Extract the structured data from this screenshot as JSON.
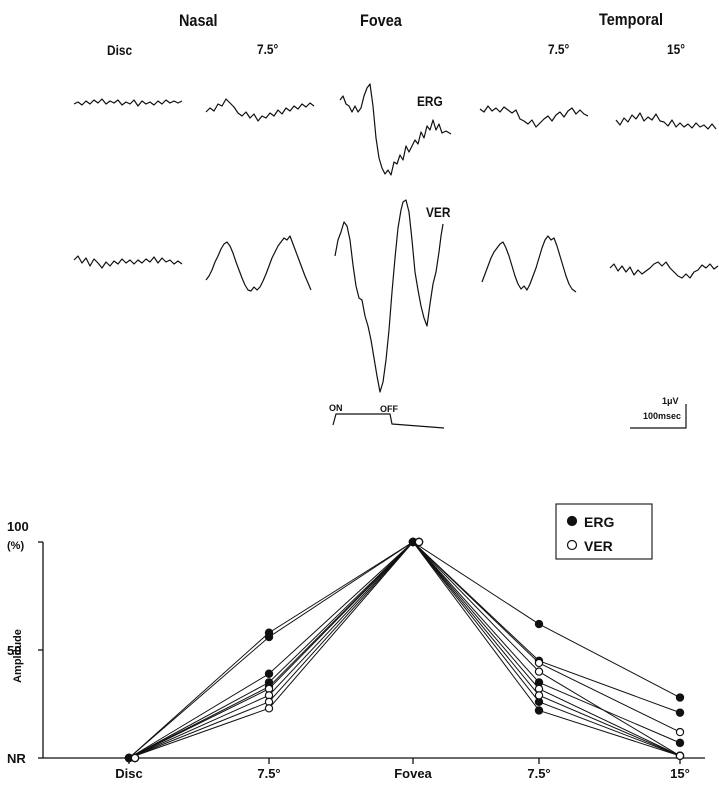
{
  "waveforms": {
    "headers": {
      "nasal": "Nasal",
      "fovea": "Fovea",
      "temporal": "Temporal",
      "disc": "Disc",
      "nasal_7_5": "7.5°",
      "temporal_7_5": "7.5°",
      "temporal_15": "15°"
    },
    "erg_label": "ERG",
    "ver_label": "VER",
    "stimulus": {
      "on": "ON",
      "off": "OFF"
    },
    "scale": {
      "amplitude": "1μV",
      "time": "100msec"
    }
  },
  "chart_data": {
    "type": "line",
    "categories": [
      "Disc",
      "7.5°",
      "Fovea",
      "7.5°",
      "15°"
    ],
    "ylabel": "Amplitude",
    "ylim": [
      0,
      100
    ],
    "y_ticks": [
      {
        "value": 100,
        "label": "100"
      },
      {
        "value": 50,
        "label": "50"
      },
      {
        "value": 0,
        "label": "NR"
      }
    ],
    "y_unit": "(%)",
    "legend": {
      "position": "top-right",
      "entries": [
        "ERG",
        "VER"
      ]
    },
    "series": [
      {
        "name": "ERG",
        "marker": "filled",
        "values": [
          0,
          58,
          100,
          62,
          28
        ]
      },
      {
        "name": "ERG",
        "marker": "filled",
        "values": [
          0,
          56,
          100,
          45,
          21
        ]
      },
      {
        "name": "ERG",
        "marker": "filled",
        "values": [
          0,
          39,
          100,
          35,
          7
        ]
      },
      {
        "name": "ERG",
        "marker": "filled",
        "values": [
          0,
          35,
          100,
          26,
          1
        ]
      },
      {
        "name": "ERG",
        "marker": "filled",
        "values": [
          0,
          33,
          100,
          22,
          1
        ]
      },
      {
        "name": "VER",
        "marker": "open",
        "values": [
          0,
          32,
          100,
          44,
          12
        ]
      },
      {
        "name": "VER",
        "marker": "open",
        "values": [
          0,
          29,
          100,
          40,
          1
        ]
      },
      {
        "name": "VER",
        "marker": "open",
        "values": [
          0,
          26,
          100,
          32,
          1
        ]
      },
      {
        "name": "VER",
        "marker": "open",
        "values": [
          0,
          23,
          100,
          29,
          1
        ]
      }
    ]
  }
}
